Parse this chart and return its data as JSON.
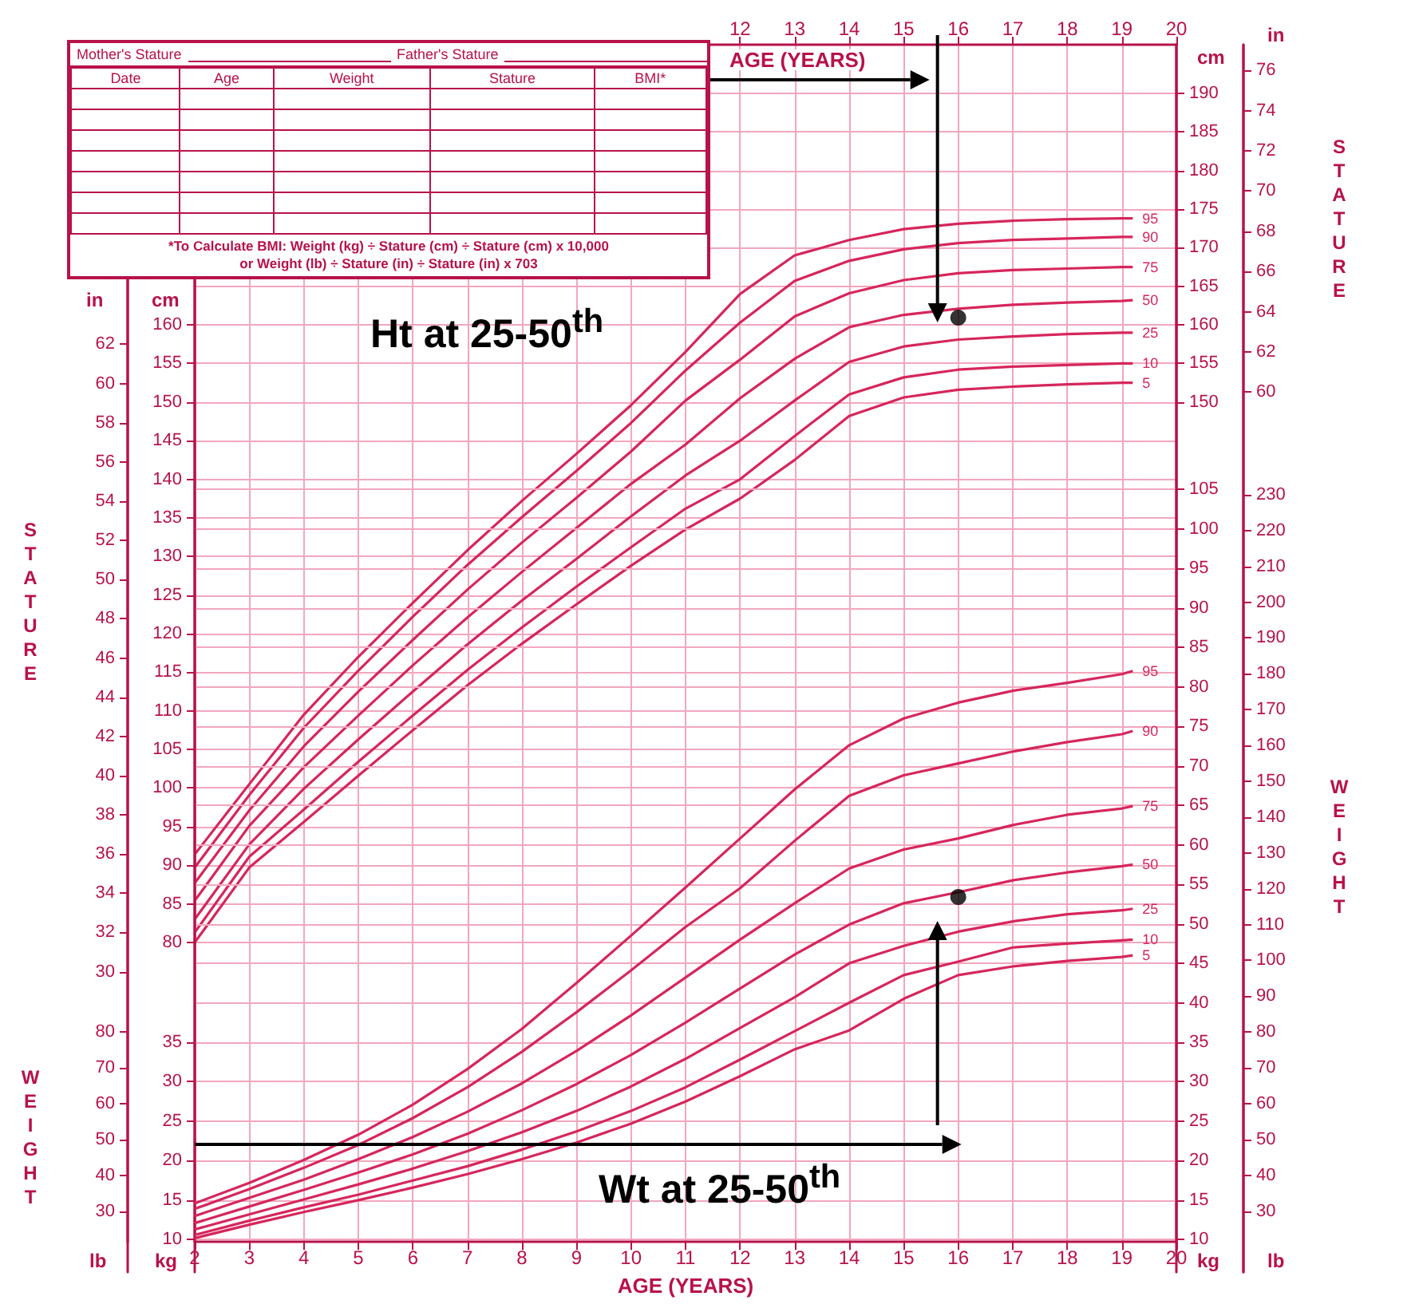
{
  "chart_data": [
    {
      "type": "line",
      "xlabel": "AGE (YEARS)",
      "x2label": "AGE (YEARS)",
      "ylabel": "STATURE",
      "y2label": "STATURE",
      "x": [
        2,
        3,
        4,
        5,
        6,
        7,
        8,
        9,
        10,
        11,
        12,
        13,
        14,
        15,
        16,
        17,
        18,
        19,
        19.2
      ],
      "xlim": [
        2,
        20
      ],
      "xticks": [
        2,
        3,
        4,
        5,
        6,
        7,
        8,
        9,
        10,
        11,
        12,
        13,
        14,
        15,
        16,
        17,
        18,
        19,
        20
      ],
      "x2lim": [
        2,
        20
      ],
      "x2ticks": [
        12,
        13,
        14,
        15,
        16,
        17,
        18,
        19,
        20
      ],
      "ylim": [
        41.2,
        196.3
      ],
      "yticks": [
        80,
        85,
        90,
        95,
        100,
        105,
        110,
        115,
        120,
        125,
        130,
        135,
        140,
        145,
        150,
        155,
        160
      ],
      "y2lim": [
        41.2,
        196.3
      ],
      "y2ticks": [
        150,
        155,
        160,
        165,
        170,
        175,
        180,
        185,
        190
      ],
      "y3lim": [
        16.22,
        77.28
      ],
      "y3ticks": [
        30,
        32,
        34,
        36,
        38,
        40,
        42,
        44,
        46,
        48,
        50,
        52,
        54,
        56,
        58,
        60,
        62
      ],
      "grid": true,
      "marker": "none",
      "series": [
        {
          "name": "95",
          "color": "#d6265b",
          "values": [
            91.4,
            100.5,
            109.5,
            117,
            124,
            130.8,
            137.2,
            143.3,
            149.6,
            156.5,
            164,
            169,
            171,
            172.4,
            173.1,
            173.5,
            173.7,
            173.8,
            173.8
          ]
        },
        {
          "name": "90",
          "color": "#d6265b",
          "values": [
            89.7,
            99.1,
            107.8,
            115.2,
            122.2,
            128.9,
            135.1,
            141.1,
            147.3,
            154.1,
            160.3,
            165.7,
            168.3,
            169.8,
            170.6,
            171,
            171.2,
            171.4,
            171.4
          ]
        },
        {
          "name": "75",
          "color": "#d6265b",
          "values": [
            87.7,
            97.1,
            105.4,
            112.5,
            119.2,
            125.7,
            131.8,
            137.6,
            143.6,
            150.2,
            155.5,
            161.1,
            164.1,
            165.8,
            166.7,
            167.1,
            167.3,
            167.5,
            167.5
          ]
        },
        {
          "name": "50",
          "color": "#d6265b",
          "values": [
            85.4,
            95.1,
            102.7,
            109.4,
            115.9,
            122.1,
            128,
            133.7,
            139.4,
            144.5,
            150.5,
            155.6,
            159.7,
            161.3,
            162.1,
            162.6,
            162.9,
            163.1,
            163.2
          ]
        },
        {
          "name": "25",
          "color": "#d6265b",
          "values": [
            83,
            92.7,
            99.9,
            106.3,
            112.5,
            118.6,
            124.3,
            129.7,
            135.2,
            140.5,
            145,
            150.2,
            155.2,
            157.2,
            158.1,
            158.5,
            158.8,
            159,
            159
          ]
        },
        {
          "name": "10",
          "color": "#d6265b",
          "values": [
            81.3,
            91.1,
            97.2,
            103.4,
            109.4,
            115.3,
            120.8,
            126.1,
            131.2,
            136.2,
            140,
            145.6,
            151,
            153.2,
            154.2,
            154.6,
            154.8,
            155,
            155
          ]
        },
        {
          "name": "5",
          "color": "#d6265b",
          "values": [
            80,
            89.7,
            95.6,
            101.6,
            107.5,
            113.3,
            118.7,
            123.8,
            128.8,
            133.5,
            137.5,
            142.5,
            148.2,
            150.6,
            151.6,
            152,
            152.3,
            152.5,
            152.5
          ]
        }
      ],
      "annotations": [
        "Mother's Stature",
        "Father's Stature",
        "Date",
        "Age",
        "Weight",
        "Stature",
        "BMI*",
        "*To Calculate BMI: Weight (kg) ÷ Stature (cm) ÷ Stature (cm) x 10,000",
        "or Weight (lb) ÷ Stature (in) ÷ Stature (in) x 703",
        "cm",
        "in",
        "cm",
        "in",
        "kg",
        "lb",
        "kg",
        "lb",
        "Ht at 25-50$^{th}$",
        "Wt at 25-50$^{th}$"
      ]
    },
    {
      "type": "line",
      "ylabel": "WEIGHT",
      "y2label": "WEIGHT",
      "tick_labels": "y",
      "x": [
        2,
        3,
        4,
        5,
        6,
        7,
        8,
        9,
        10,
        11,
        12,
        13,
        14,
        15,
        16,
        17,
        18,
        19,
        19.2
      ],
      "xlim": [
        2,
        20
      ],
      "ylim": [
        5.9,
        161.3
      ],
      "yticks": [
        10,
        15,
        20,
        25,
        30,
        35
      ],
      "y2lim": [
        5.9,
        161.3
      ],
      "y2ticks": [
        10,
        15,
        20,
        25,
        30,
        35,
        40,
        45,
        50,
        55,
        60,
        65,
        70,
        75,
        80,
        85,
        90,
        95,
        100,
        105
      ],
      "y3lim": [
        13.01,
        355.6
      ],
      "y3ticks": [
        30,
        40,
        50,
        60,
        70,
        80
      ],
      "grid": true,
      "marker": "none",
      "series": [
        {
          "name": "95",
          "color": "#d6265b",
          "values": [
            14.6,
            17.2,
            20.1,
            23.3,
            27.1,
            31.6,
            36.7,
            42.5,
            48.5,
            54.6,
            60.8,
            67,
            72.6,
            76,
            78,
            79.5,
            80.5,
            81.6,
            82
          ]
        },
        {
          "name": "90",
          "color": "#d6265b",
          "values": [
            13.9,
            16.4,
            19.1,
            22,
            25.4,
            29.3,
            33.8,
            38.8,
            44.1,
            49.6,
            54.5,
            60.5,
            66.2,
            68.8,
            70.3,
            71.8,
            73,
            74,
            74.4
          ]
        },
        {
          "name": "75",
          "color": "#d6265b",
          "values": [
            13,
            15.3,
            17.6,
            20.2,
            23,
            26.2,
            29.8,
            33.9,
            38.4,
            43.2,
            48,
            52.6,
            57,
            59.4,
            60.8,
            62.5,
            63.8,
            64.6,
            64.9
          ]
        },
        {
          "name": "50",
          "color": "#d6265b",
          "values": [
            12.1,
            14.2,
            16.3,
            18.5,
            20.8,
            23.4,
            26.4,
            29.7,
            33.4,
            37.5,
            41.8,
            46.1,
            49.9,
            52.6,
            54,
            55.5,
            56.5,
            57.3,
            57.5
          ]
        },
        {
          "name": "25",
          "color": "#d6265b",
          "values": [
            11.3,
            13.2,
            15.1,
            17,
            19,
            21.2,
            23.6,
            26.3,
            29.4,
            32.9,
            36.8,
            40.7,
            45,
            47.2,
            49,
            50.3,
            51.2,
            51.7,
            51.9
          ]
        },
        {
          "name": "10",
          "color": "#d6265b",
          "values": [
            10.6,
            12.4,
            14.1,
            15.7,
            17.5,
            19.3,
            21.4,
            23.7,
            26.3,
            29.3,
            32.8,
            36.4,
            40,
            43.5,
            45.2,
            47,
            47.5,
            47.9,
            48
          ]
        },
        {
          "name": "5",
          "color": "#d6265b",
          "values": [
            10.2,
            11.9,
            13.5,
            15,
            16.6,
            18.3,
            20.2,
            22.3,
            24.7,
            27.5,
            30.7,
            34.1,
            36.5,
            40.5,
            43.5,
            44.6,
            45.3,
            45.8,
            46
          ]
        }
      ]
    },
    {
      "type": "scatter",
      "tick_labels": "y",
      "xlim": [
        2,
        20
      ],
      "marker": "circle",
      "ylim": [
        16.22,
        77.28
      ],
      "yticks": [
        60,
        62,
        64,
        66,
        68,
        70,
        72,
        74,
        76
      ],
      "y2lim": [
        13.01,
        355.6
      ],
      "y2ticks": [
        30,
        40,
        50,
        60,
        70,
        80,
        90,
        100,
        110,
        120,
        130,
        140,
        150,
        160,
        170,
        180,
        190,
        200,
        210,
        220,
        230
      ],
      "series": [
        {
          "color": "#000000",
          "x": [
            16
          ],
          "values": [
            63.7
          ]
        },
        {
          "color": "#000000",
          "axis": "y2",
          "x": [
            16
          ],
          "values": [
            117.7
          ]
        }
      ]
    }
  ]
}
